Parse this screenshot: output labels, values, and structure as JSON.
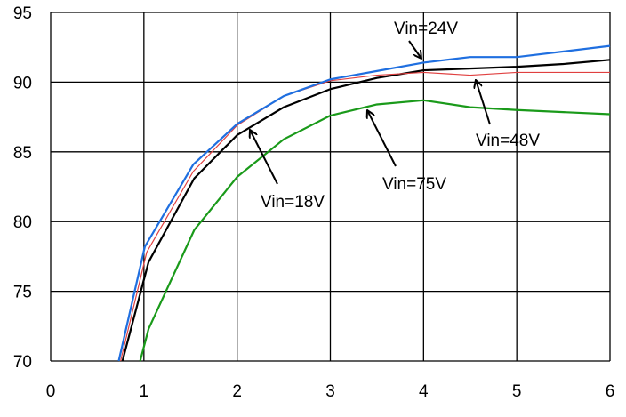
{
  "chart_data": {
    "type": "line",
    "title": "",
    "xlabel": "",
    "ylabel": "",
    "xlim": [
      0,
      6
    ],
    "ylim": [
      70,
      95
    ],
    "x_ticks": [
      "0",
      "1",
      "2",
      "3",
      "4",
      "5",
      "6"
    ],
    "y_ticks": [
      "70",
      "75",
      "80",
      "85",
      "90",
      "95"
    ],
    "grid": true,
    "legend": "none",
    "series": [
      {
        "name": "Vin=18V",
        "color": "#000000",
        "x": [
          0.77,
          1.05,
          1.54,
          2.0,
          2.5,
          3.0,
          3.5,
          4.0,
          5.0,
          5.5,
          6.0
        ],
        "y": [
          70.0,
          77.1,
          83.1,
          86.2,
          88.2,
          89.5,
          90.3,
          90.85,
          91.1,
          91.3,
          91.6
        ]
      },
      {
        "name": "Vin=24V",
        "color": "#1f6fe0",
        "x": [
          0.73,
          1.01,
          1.53,
          2.0,
          2.5,
          3.0,
          3.5,
          4.0,
          4.5,
          5.0,
          6.0
        ],
        "y": [
          70.0,
          78.2,
          84.1,
          87.0,
          89.0,
          90.2,
          90.8,
          91.4,
          91.8,
          91.8,
          92.6
        ]
      },
      {
        "name": "Vin=48V",
        "color": "#e04040",
        "x": [
          0.75,
          1.03,
          1.53,
          2.0,
          2.5,
          3.0,
          3.5,
          4.0,
          4.5,
          5.0,
          6.0
        ],
        "y": [
          70.0,
          77.8,
          83.6,
          86.9,
          89.0,
          90.1,
          90.5,
          90.7,
          90.5,
          90.7,
          90.7
        ]
      },
      {
        "name": "Vin=75V",
        "color": "#1a9a1a",
        "x": [
          0.96,
          1.05,
          1.54,
          2.0,
          2.5,
          3.0,
          3.5,
          4.0,
          4.5,
          5.0,
          6.0
        ],
        "y": [
          70.0,
          72.3,
          79.4,
          83.2,
          85.9,
          87.6,
          88.4,
          88.7,
          88.2,
          88.0,
          87.7
        ]
      }
    ],
    "annotations": [
      "Vin=24V",
      "Vin=48V",
      "Vin=75V",
      "Vin=18V"
    ]
  }
}
